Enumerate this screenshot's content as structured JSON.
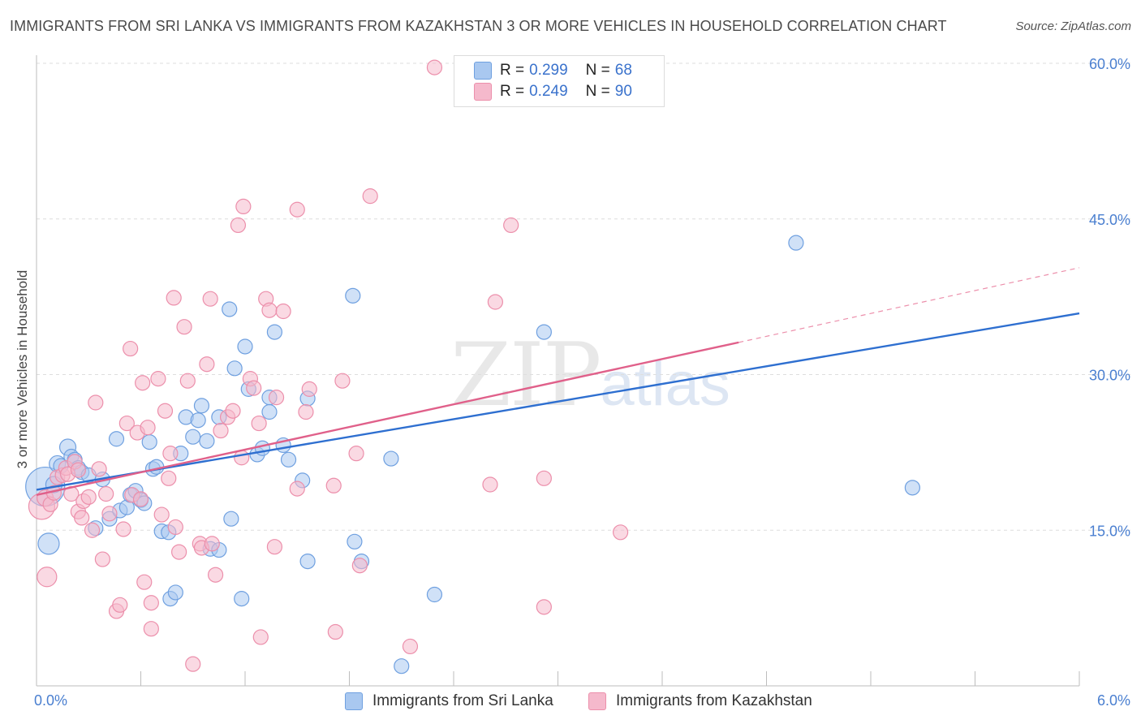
{
  "title": "IMMIGRANTS FROM SRI LANKA VS IMMIGRANTS FROM KAZAKHSTAN 3 OR MORE VEHICLES IN HOUSEHOLD CORRELATION CHART",
  "source": "Source: ZipAtlas.com",
  "watermark": {
    "zip": "ZIP",
    "atlas": "atlas"
  },
  "legend": {
    "rows": [
      {
        "r_label": "R =",
        "r_value": "0.299",
        "n_label": "N =",
        "n_value": "68",
        "color": "#a9c8f0"
      },
      {
        "r_label": "R =",
        "r_value": "0.249",
        "n_label": "N =",
        "n_value": "90",
        "color": "#f5b9cc"
      }
    ]
  },
  "chart_data": {
    "type": "scatter",
    "title": "IMMIGRANTS FROM SRI LANKA VS IMMIGRANTS FROM KAZAKHSTAN 3 OR MORE VEHICLES IN HOUSEHOLD CORRELATION CHART",
    "xlabel": "",
    "ylabel": "3 or more Vehicles in Household",
    "xlim": [
      0,
      6
    ],
    "ylim": [
      0,
      60
    ],
    "x_tick_labels": [
      "0.0%",
      "6.0%"
    ],
    "y_ticks": [
      15,
      30,
      45,
      60
    ],
    "y_tick_labels": [
      "15.0%",
      "30.0%",
      "45.0%",
      "60.0%"
    ],
    "grid": true,
    "legend_position": "top-center",
    "series": [
      {
        "name": "Immigrants from Sri Lanka",
        "color": "#6fa0e0",
        "fill": "#a9c8f0",
        "line_color": "#2e6fd0",
        "trend": {
          "x": [
            0,
            6.0
          ],
          "y": [
            18.9,
            35.9
          ]
        },
        "points": [
          [
            0.05,
            19.2,
            24
          ],
          [
            0.07,
            13.7,
            13
          ],
          [
            0.1,
            19.4,
            10
          ],
          [
            0.12,
            21.4,
            10
          ],
          [
            0.14,
            21.2,
            9
          ],
          [
            0.18,
            23.0,
            10
          ],
          [
            0.2,
            22.1,
            9
          ],
          [
            0.22,
            21.8,
            9
          ],
          [
            0.24,
            21.0,
            9
          ],
          [
            0.26,
            20.6,
            9
          ],
          [
            0.3,
            20.3,
            9
          ],
          [
            0.34,
            15.2,
            9
          ],
          [
            0.38,
            19.9,
            9
          ],
          [
            0.42,
            16.1,
            9
          ],
          [
            0.46,
            23.8,
            9
          ],
          [
            0.48,
            16.9,
            9
          ],
          [
            0.52,
            17.2,
            9
          ],
          [
            0.54,
            18.4,
            9
          ],
          [
            0.57,
            18.8,
            9
          ],
          [
            0.6,
            17.9,
            9
          ],
          [
            0.62,
            17.6,
            9
          ],
          [
            0.65,
            23.5,
            9
          ],
          [
            0.67,
            20.9,
            9
          ],
          [
            0.69,
            21.1,
            9
          ],
          [
            0.72,
            14.9,
            9
          ],
          [
            0.76,
            14.8,
            9
          ],
          [
            0.77,
            8.4,
            9
          ],
          [
            0.8,
            9.0,
            9
          ],
          [
            0.83,
            22.4,
            9
          ],
          [
            0.86,
            25.9,
            9
          ],
          [
            0.9,
            24.0,
            9
          ],
          [
            0.93,
            25.6,
            9
          ],
          [
            0.95,
            27.0,
            9
          ],
          [
            0.98,
            23.6,
            9
          ],
          [
            1.0,
            13.2,
            9
          ],
          [
            1.05,
            13.1,
            9
          ],
          [
            1.05,
            25.9,
            9
          ],
          [
            1.11,
            36.3,
            9
          ],
          [
            1.12,
            16.1,
            9
          ],
          [
            1.14,
            30.6,
            9
          ],
          [
            1.18,
            8.4,
            9
          ],
          [
            1.2,
            32.7,
            9
          ],
          [
            1.22,
            28.6,
            9
          ],
          [
            1.27,
            22.3,
            9
          ],
          [
            1.3,
            22.9,
            9
          ],
          [
            1.34,
            27.8,
            9
          ],
          [
            1.34,
            26.4,
            9
          ],
          [
            1.37,
            34.1,
            9
          ],
          [
            1.42,
            23.2,
            9
          ],
          [
            1.45,
            21.8,
            9
          ],
          [
            1.53,
            19.8,
            9
          ],
          [
            1.56,
            12.0,
            9
          ],
          [
            1.56,
            27.7,
            9
          ],
          [
            1.82,
            37.6,
            9
          ],
          [
            1.83,
            13.9,
            9
          ],
          [
            1.87,
            12.0,
            9
          ],
          [
            2.04,
            21.9,
            9
          ],
          [
            2.1,
            1.9,
            9
          ],
          [
            2.29,
            8.8,
            9
          ],
          [
            2.92,
            34.1,
            9
          ],
          [
            4.37,
            42.7,
            9
          ],
          [
            5.04,
            19.1,
            9
          ]
        ]
      },
      {
        "name": "Immigrants from Kazakhstan",
        "color": "#ec8fab",
        "fill": "#f5b9cc",
        "line_color": "#e0608a",
        "trend": {
          "x": [
            0,
            4.04
          ],
          "y": [
            18.4,
            33.1
          ]
        },
        "trend_dashed": {
          "x": [
            4.04,
            6.0
          ],
          "y": [
            33.1,
            40.3
          ]
        },
        "points": [
          [
            0.03,
            17.3,
            16
          ],
          [
            0.05,
            18.1,
            10
          ],
          [
            0.06,
            10.5,
            12
          ],
          [
            0.08,
            17.5,
            9
          ],
          [
            0.1,
            18.6,
            9
          ],
          [
            0.12,
            20.1,
            9
          ],
          [
            0.15,
            20.3,
            9
          ],
          [
            0.17,
            21.0,
            9
          ],
          [
            0.18,
            20.4,
            9
          ],
          [
            0.2,
            18.5,
            9
          ],
          [
            0.22,
            21.6,
            9
          ],
          [
            0.24,
            20.8,
            9
          ],
          [
            0.24,
            16.8,
            9
          ],
          [
            0.26,
            16.2,
            9
          ],
          [
            0.27,
            17.8,
            9
          ],
          [
            0.3,
            18.2,
            9
          ],
          [
            0.32,
            15.0,
            9
          ],
          [
            0.34,
            27.3,
            9
          ],
          [
            0.36,
            20.9,
            9
          ],
          [
            0.38,
            12.2,
            9
          ],
          [
            0.4,
            18.5,
            9
          ],
          [
            0.42,
            16.6,
            9
          ],
          [
            0.46,
            7.2,
            9
          ],
          [
            0.48,
            7.8,
            9
          ],
          [
            0.5,
            15.1,
            9
          ],
          [
            0.52,
            25.3,
            9
          ],
          [
            0.54,
            32.5,
            9
          ],
          [
            0.55,
            18.4,
            9
          ],
          [
            0.58,
            24.4,
            9
          ],
          [
            0.6,
            18.0,
            9
          ],
          [
            0.61,
            29.2,
            9
          ],
          [
            0.62,
            10.0,
            9
          ],
          [
            0.64,
            24.9,
            9
          ],
          [
            0.66,
            8.0,
            9
          ],
          [
            0.66,
            5.5,
            9
          ],
          [
            0.7,
            29.6,
            9
          ],
          [
            0.72,
            16.5,
            9
          ],
          [
            0.74,
            26.5,
            9
          ],
          [
            0.76,
            20.0,
            9
          ],
          [
            0.77,
            22.4,
            9
          ],
          [
            0.79,
            37.4,
            9
          ],
          [
            0.8,
            15.3,
            9
          ],
          [
            0.82,
            12.9,
            9
          ],
          [
            0.85,
            34.6,
            9
          ],
          [
            0.87,
            29.4,
            9
          ],
          [
            0.9,
            2.1,
            9
          ],
          [
            0.94,
            13.7,
            9
          ],
          [
            0.95,
            13.3,
            9
          ],
          [
            0.98,
            31.0,
            9
          ],
          [
            1.0,
            37.3,
            9
          ],
          [
            1.01,
            13.7,
            9
          ],
          [
            1.03,
            10.7,
            9
          ],
          [
            1.06,
            24.6,
            9
          ],
          [
            1.1,
            25.9,
            9
          ],
          [
            1.13,
            26.5,
            9
          ],
          [
            1.16,
            44.4,
            9
          ],
          [
            1.18,
            22.0,
            9
          ],
          [
            1.19,
            46.2,
            9
          ],
          [
            1.23,
            29.6,
            9
          ],
          [
            1.25,
            28.7,
            9
          ],
          [
            1.28,
            25.3,
            9
          ],
          [
            1.29,
            4.7,
            9
          ],
          [
            1.32,
            37.3,
            9
          ],
          [
            1.34,
            36.2,
            9
          ],
          [
            1.37,
            13.4,
            9
          ],
          [
            1.38,
            27.8,
            9
          ],
          [
            1.42,
            36.1,
            9
          ],
          [
            1.5,
            45.9,
            9
          ],
          [
            1.5,
            19.0,
            9
          ],
          [
            1.55,
            26.4,
            9
          ],
          [
            1.57,
            28.6,
            9
          ],
          [
            1.71,
            19.3,
            9
          ],
          [
            1.72,
            5.2,
            9
          ],
          [
            1.76,
            29.4,
            9
          ],
          [
            1.84,
            22.4,
            9
          ],
          [
            1.86,
            11.6,
            9
          ],
          [
            1.92,
            47.2,
            9
          ],
          [
            2.15,
            3.8,
            9
          ],
          [
            2.29,
            59.6,
            9
          ],
          [
            2.6,
            58.4,
            9
          ],
          [
            2.61,
            19.4,
            9
          ],
          [
            2.64,
            37.0,
            9
          ],
          [
            2.73,
            44.4,
            9
          ],
          [
            2.92,
            20.0,
            9
          ],
          [
            2.92,
            7.6,
            9
          ],
          [
            3.36,
            14.8,
            9
          ]
        ]
      }
    ]
  },
  "bottom_legend": [
    {
      "label": "Immigrants from Sri Lanka",
      "color": "#a9c8f0"
    },
    {
      "label": "Immigrants from Kazakhstan",
      "color": "#f5b9cc"
    }
  ]
}
